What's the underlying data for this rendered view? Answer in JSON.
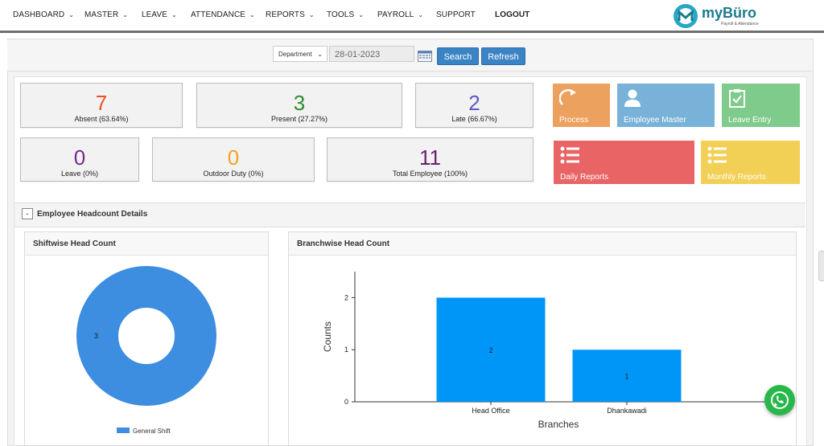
{
  "nav": {
    "items": [
      {
        "label": "DASHBOARD",
        "dropdown": true
      },
      {
        "label": "MASTER",
        "dropdown": true
      },
      {
        "label": "LEAVE",
        "dropdown": true
      },
      {
        "label": "ATTENDANCE",
        "dropdown": true
      },
      {
        "label": "REPORTS",
        "dropdown": true
      },
      {
        "label": "TOOLS",
        "dropdown": true
      },
      {
        "label": "PAYROLL",
        "dropdown": true
      },
      {
        "label": "SUPPORT",
        "dropdown": false
      },
      {
        "label": "LOGOUT",
        "dropdown": false
      }
    ],
    "logo_text": "myBüro",
    "logo_tagline": "Payroll & Attendance"
  },
  "filters": {
    "department_selected": "Department",
    "date_value": "28-01-2023",
    "search_label": "Search",
    "refresh_label": "Refresh"
  },
  "stats": {
    "absent": {
      "value": "7",
      "label": "Absent (63.64%)",
      "color": "#e8522a"
    },
    "present": {
      "value": "3",
      "label": "Present (27.27%)",
      "color": "#2e8b2e"
    },
    "late": {
      "value": "2",
      "label": "Late (66.67%)",
      "color": "#5b58c4"
    },
    "leave": {
      "value": "0",
      "label": "Leave (0%)",
      "color": "#7a2a8a"
    },
    "outdoor": {
      "value": "0",
      "label": "Outdoor Duty (0%)",
      "color": "#f2a31f"
    },
    "total": {
      "value": "11",
      "label": "Total Employee (100%)",
      "color": "#6a1e6e"
    }
  },
  "tiles": {
    "process": {
      "label": "Process",
      "color": "#eda15e"
    },
    "employee_master": {
      "label": "Employee Master",
      "color": "#78b2d8"
    },
    "leave_entry": {
      "label": "Leave Entry",
      "color": "#7fcb8c"
    },
    "daily_reports": {
      "label": "Daily Reports",
      "color": "#e96464"
    },
    "monthly_reports": {
      "label": "Monthly Reports",
      "color": "#f2cf55"
    }
  },
  "section": {
    "toggle": "-",
    "title": "Employee Headcount Details"
  },
  "shiftwise": {
    "title": "Shiftwise Head Count",
    "chart_data": {
      "type": "pie",
      "labels": [
        "General Shift"
      ],
      "values": [
        3
      ],
      "colors": [
        "#3d8de0"
      ],
      "legend_placement": "bottom"
    }
  },
  "branchwise": {
    "title": "Branchwise Head Count",
    "chart_data": {
      "type": "bar",
      "categories": [
        "Head Office",
        "Dhankawadi"
      ],
      "values": [
        2,
        1
      ],
      "xlabel": "Branches",
      "ylabel": "Counts",
      "ylim": [
        0,
        2.5
      ],
      "yticks": [
        0,
        1,
        2
      ],
      "color": "#0096f7",
      "grid": false
    }
  }
}
